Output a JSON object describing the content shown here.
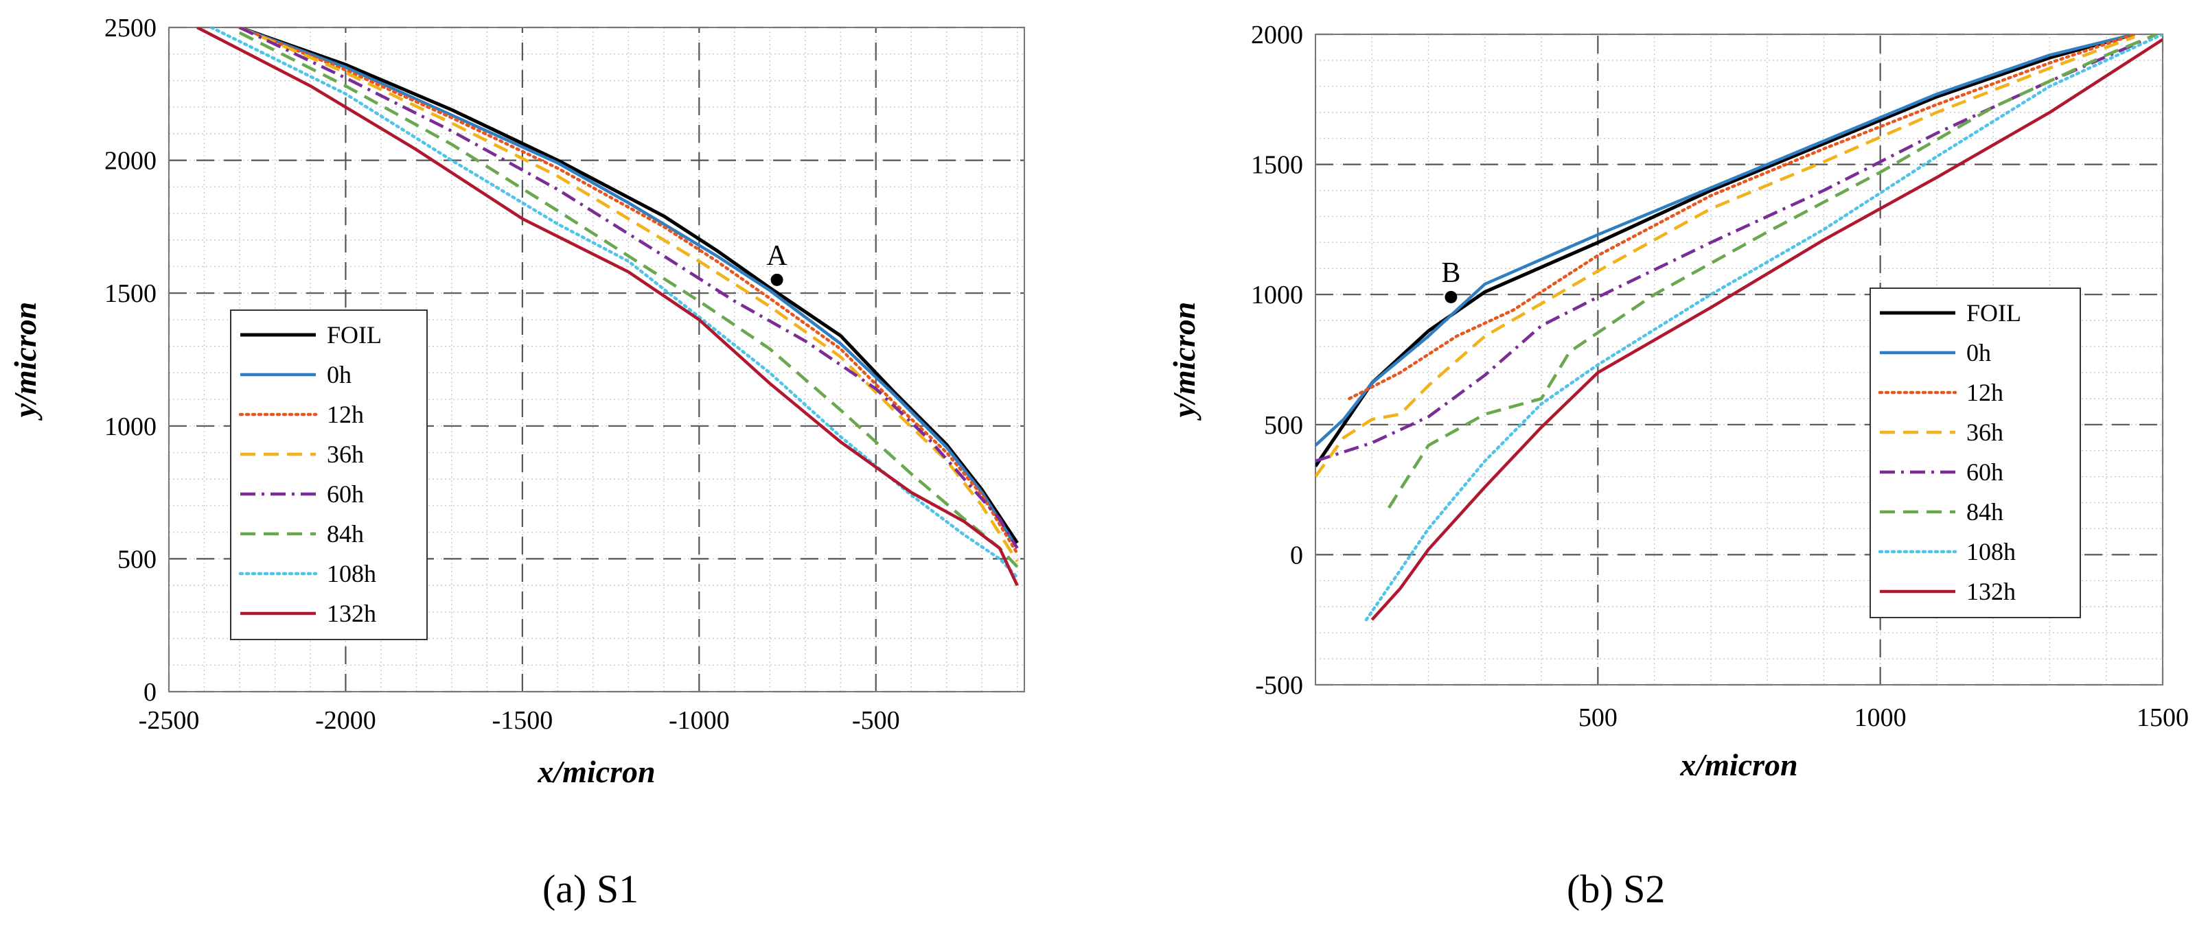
{
  "chart_data": [
    {
      "type": "line",
      "caption": "(a) S1",
      "xlabel": "x/micron",
      "ylabel": "y/micron",
      "xlim": [
        -2500,
        -80
      ],
      "ylim": [
        0,
        2500
      ],
      "xticks": [
        -2500,
        -2000,
        -1500,
        -1000,
        -500
      ],
      "yticks": [
        0,
        500,
        1000,
        1500,
        2000,
        2500
      ],
      "grid": true,
      "legend_position": "lower-left",
      "annotation": {
        "label": "A",
        "x": -780,
        "y": 1550
      },
      "series": [
        {
          "name": "FOIL",
          "color": "#000000",
          "style": "solid",
          "points": [
            [
              -2300,
              2500
            ],
            [
              -2000,
              2360
            ],
            [
              -1700,
              2190
            ],
            [
              -1400,
              2000
            ],
            [
              -1100,
              1790
            ],
            [
              -950,
              1660
            ],
            [
              -800,
              1520
            ],
            [
              -600,
              1340
            ],
            [
              -450,
              1130
            ],
            [
              -300,
              930
            ],
            [
              -200,
              760
            ],
            [
              -100,
              560
            ]
          ]
        },
        {
          "name": "0h",
          "color": "#2f7ec1",
          "style": "solid",
          "points": [
            [
              -2300,
              2500
            ],
            [
              -2000,
              2350
            ],
            [
              -1700,
              2170
            ],
            [
              -1400,
              1990
            ],
            [
              -1200,
              1840
            ],
            [
              -1100,
              1760
            ],
            [
              -950,
              1640
            ],
            [
              -800,
              1510
            ],
            [
              -600,
              1310
            ],
            [
              -450,
              1120
            ],
            [
              -300,
              920
            ],
            [
              -200,
              750
            ],
            [
              -100,
              540
            ]
          ]
        },
        {
          "name": "12h",
          "color": "#e8561f",
          "style": "dotted",
          "points": [
            [
              -2300,
              2500
            ],
            [
              -2000,
              2340
            ],
            [
              -1700,
              2160
            ],
            [
              -1400,
              1970
            ],
            [
              -1100,
              1750
            ],
            [
              -950,
              1620
            ],
            [
              -800,
              1480
            ],
            [
              -600,
              1290
            ],
            [
              -450,
              1090
            ],
            [
              -300,
              900
            ],
            [
              -200,
              740
            ],
            [
              -100,
              520
            ]
          ]
        },
        {
          "name": "36h",
          "color": "#f2b21b",
          "style": "dashed",
          "points": [
            [
              -2300,
              2500
            ],
            [
              -2000,
              2330
            ],
            [
              -1700,
              2140
            ],
            [
              -1400,
              1940
            ],
            [
              -1200,
              1780
            ],
            [
              -1000,
              1620
            ],
            [
              -800,
              1450
            ],
            [
              -600,
              1260
            ],
            [
              -450,
              1060
            ],
            [
              -300,
              870
            ],
            [
              -200,
              700
            ],
            [
              -100,
              490
            ]
          ]
        },
        {
          "name": "60h",
          "color": "#7b2d96",
          "style": "dashdot",
          "points": [
            [
              -2300,
              2500
            ],
            [
              -2000,
              2310
            ],
            [
              -1700,
              2110
            ],
            [
              -1400,
              1890
            ],
            [
              -1100,
              1640
            ],
            [
              -900,
              1470
            ],
            [
              -700,
              1320
            ],
            [
              -500,
              1140
            ],
            [
              -350,
              950
            ],
            [
              -250,
              800
            ],
            [
              -150,
              650
            ],
            [
              -100,
              540
            ]
          ]
        },
        {
          "name": "84h",
          "color": "#6aa84f",
          "style": "dashed",
          "points": [
            [
              -2300,
              2480
            ],
            [
              -2000,
              2280
            ],
            [
              -1700,
              2060
            ],
            [
              -1400,
              1810
            ],
            [
              -1200,
              1640
            ],
            [
              -1000,
              1470
            ],
            [
              -800,
              1290
            ],
            [
              -600,
              1060
            ],
            [
              -400,
              820
            ],
            [
              -250,
              650
            ],
            [
              -150,
              540
            ],
            [
              -100,
              470
            ]
          ]
        },
        {
          "name": "108h",
          "color": "#4fc3e8",
          "style": "dotted",
          "points": [
            [
              -2380,
              2500
            ],
            [
              -2000,
              2250
            ],
            [
              -1700,
              2000
            ],
            [
              -1400,
              1760
            ],
            [
              -1200,
              1620
            ],
            [
              -1000,
              1410
            ],
            [
              -800,
              1200
            ],
            [
              -600,
              960
            ],
            [
              -400,
              740
            ],
            [
              -250,
              590
            ],
            [
              -150,
              500
            ],
            [
              -100,
              430
            ]
          ]
        },
        {
          "name": "132h",
          "color": "#b0182f",
          "style": "solid",
          "points": [
            [
              -2420,
              2500
            ],
            [
              -2100,
              2280
            ],
            [
              -1800,
              2040
            ],
            [
              -1500,
              1780
            ],
            [
              -1200,
              1580
            ],
            [
              -1000,
              1400
            ],
            [
              -800,
              1160
            ],
            [
              -600,
              940
            ],
            [
              -400,
              750
            ],
            [
              -250,
              640
            ],
            [
              -150,
              540
            ],
            [
              -100,
              400
            ]
          ]
        }
      ]
    },
    {
      "type": "line",
      "caption": "(b) S2",
      "xlabel": "x/micron",
      "ylabel": "y/micron",
      "xlim": [
        0,
        1500
      ],
      "ylim": [
        -500,
        2000
      ],
      "xticks": [
        500,
        1000,
        1500
      ],
      "yticks": [
        -500,
        0,
        500,
        1000,
        1500,
        2000
      ],
      "grid": true,
      "legend_position": "lower-right",
      "annotation": {
        "label": "B",
        "x": 240,
        "y": 990
      },
      "series": [
        {
          "name": "FOIL",
          "color": "#000000",
          "style": "solid",
          "points": [
            [
              0,
              340
            ],
            [
              50,
              500
            ],
            [
              100,
              660
            ],
            [
              200,
              860
            ],
            [
              300,
              1010
            ],
            [
              500,
              1200
            ],
            [
              700,
              1400
            ],
            [
              900,
              1580
            ],
            [
              1100,
              1760
            ],
            [
              1300,
              1910
            ],
            [
              1450,
              2000
            ]
          ]
        },
        {
          "name": "0h",
          "color": "#2f7ec1",
          "style": "solid",
          "points": [
            [
              0,
              420
            ],
            [
              50,
              520
            ],
            [
              100,
              660
            ],
            [
              200,
              840
            ],
            [
              300,
              1040
            ],
            [
              500,
              1230
            ],
            [
              700,
              1410
            ],
            [
              900,
              1590
            ],
            [
              1100,
              1770
            ],
            [
              1300,
              1920
            ],
            [
              1450,
              2000
            ]
          ]
        },
        {
          "name": "12h",
          "color": "#e8561f",
          "style": "dotted",
          "points": [
            [
              60,
              600
            ],
            [
              150,
              700
            ],
            [
              250,
              840
            ],
            [
              350,
              940
            ],
            [
              500,
              1150
            ],
            [
              700,
              1380
            ],
            [
              900,
              1560
            ],
            [
              1100,
              1730
            ],
            [
              1300,
              1890
            ],
            [
              1450,
              2000
            ]
          ]
        },
        {
          "name": "36h",
          "color": "#f2b21b",
          "style": "dashed",
          "points": [
            [
              0,
              300
            ],
            [
              50,
              450
            ],
            [
              100,
              520
            ],
            [
              150,
              540
            ],
            [
              200,
              650
            ],
            [
              300,
              840
            ],
            [
              500,
              1090
            ],
            [
              700,
              1330
            ],
            [
              900,
              1510
            ],
            [
              1100,
              1700
            ],
            [
              1300,
              1870
            ],
            [
              1450,
              1990
            ]
          ]
        },
        {
          "name": "60h",
          "color": "#7b2d96",
          "style": "dashdot",
          "points": [
            [
              0,
              360
            ],
            [
              100,
              430
            ],
            [
              200,
              530
            ],
            [
              300,
              690
            ],
            [
              400,
              880
            ],
            [
              500,
              990
            ],
            [
              700,
              1200
            ],
            [
              900,
              1400
            ],
            [
              1100,
              1620
            ],
            [
              1300,
              1820
            ],
            [
              1470,
              1980
            ]
          ]
        },
        {
          "name": "84h",
          "color": "#6aa84f",
          "style": "dashed",
          "points": [
            [
              130,
              180
            ],
            [
              150,
              250
            ],
            [
              200,
              420
            ],
            [
              300,
              540
            ],
            [
              400,
              600
            ],
            [
              450,
              780
            ],
            [
              600,
              1000
            ],
            [
              800,
              1240
            ],
            [
              1000,
              1470
            ],
            [
              1200,
              1720
            ],
            [
              1400,
              1920
            ],
            [
              1490,
              2000
            ]
          ]
        },
        {
          "name": "108h",
          "color": "#4fc3e8",
          "style": "dotted",
          "points": [
            [
              90,
              -250
            ],
            [
              150,
              -60
            ],
            [
              200,
              100
            ],
            [
              300,
              360
            ],
            [
              400,
              580
            ],
            [
              500,
              730
            ],
            [
              700,
              1000
            ],
            [
              900,
              1250
            ],
            [
              1100,
              1530
            ],
            [
              1300,
              1800
            ],
            [
              1500,
              2000
            ]
          ]
        },
        {
          "name": "132h",
          "color": "#b0182f",
          "style": "solid",
          "points": [
            [
              100,
              -250
            ],
            [
              150,
              -130
            ],
            [
              200,
              20
            ],
            [
              300,
              260
            ],
            [
              400,
              490
            ],
            [
              500,
              700
            ],
            [
              700,
              950
            ],
            [
              900,
              1210
            ],
            [
              1100,
              1450
            ],
            [
              1300,
              1700
            ],
            [
              1500,
              1980
            ]
          ]
        }
      ]
    }
  ]
}
